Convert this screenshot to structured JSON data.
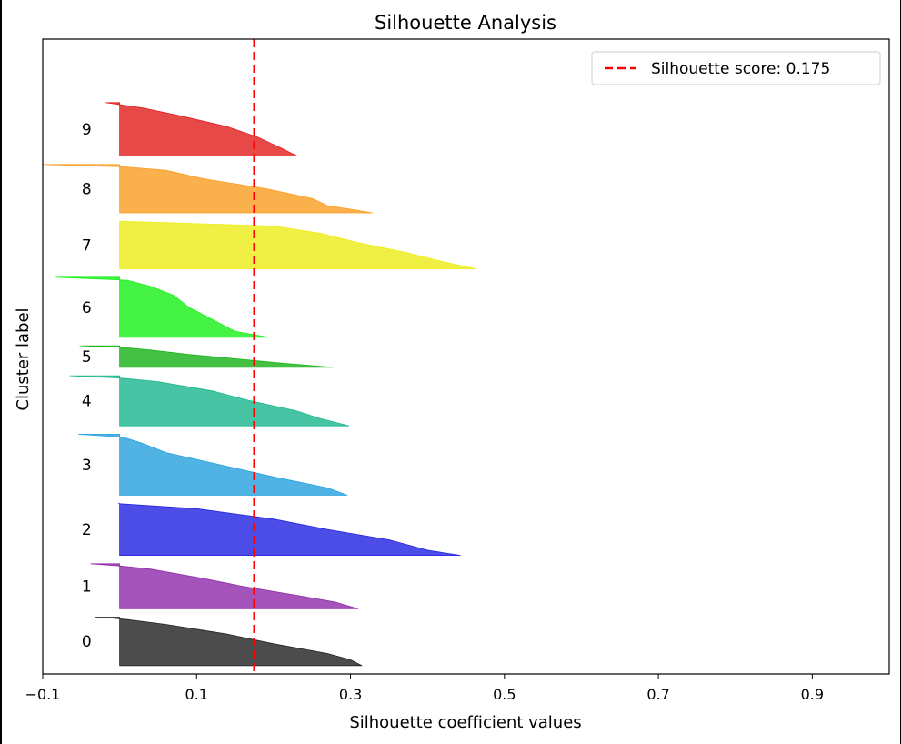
{
  "chart_data": {
    "type": "silhouette",
    "title": "Silhouette Analysis",
    "xlabel": "Silhouette coefficient values",
    "ylabel": "Cluster label",
    "xlim": [
      -0.1,
      1.0
    ],
    "ylim": [
      0,
      760
    ],
    "xticks": [
      -0.1,
      0.1,
      0.3,
      0.5,
      0.7,
      0.9
    ],
    "xtick_labels": [
      "−0.1",
      "0.1",
      "0.3",
      "0.5",
      "0.7",
      "0.9"
    ],
    "yticks": [],
    "grid": false,
    "silhouette_score": 0.175,
    "legend": {
      "entries": [
        "Silhouette score: 0.175"
      ],
      "location": "upper right"
    },
    "clusters": [
      {
        "label": "0",
        "size": 58,
        "min": -0.032,
        "max": 0.315,
        "color": "#1a1a1a",
        "profile": [
          [
            0,
            0.315
          ],
          [
            0.12,
            0.3
          ],
          [
            0.25,
            0.27
          ],
          [
            0.45,
            0.2
          ],
          [
            0.65,
            0.14
          ],
          [
            0.85,
            0.06
          ],
          [
            0.95,
            0.01
          ],
          [
            0.98,
            -0.01
          ],
          [
            1,
            -0.032
          ]
        ]
      },
      {
        "label": "1",
        "size": 54,
        "min": -0.038,
        "max": 0.31,
        "color": "#8a22a6",
        "profile": [
          [
            0,
            0.31
          ],
          [
            0.15,
            0.28
          ],
          [
            0.3,
            0.23
          ],
          [
            0.5,
            0.16
          ],
          [
            0.7,
            0.1
          ],
          [
            0.88,
            0.04
          ],
          [
            0.95,
            0.0
          ],
          [
            1,
            -0.038
          ]
        ]
      },
      {
        "label": "2",
        "size": 62,
        "min": -0.002,
        "max": 0.443,
        "color": "#1a1ae0",
        "profile": [
          [
            0,
            0.443
          ],
          [
            0.1,
            0.4
          ],
          [
            0.3,
            0.35
          ],
          [
            0.5,
            0.27
          ],
          [
            0.7,
            0.2
          ],
          [
            0.9,
            0.1
          ],
          [
            1,
            -0.002
          ]
        ]
      },
      {
        "label": "3",
        "size": 73,
        "min": -0.054,
        "max": 0.296,
        "color": "#1f9ddc",
        "profile": [
          [
            0,
            0.296
          ],
          [
            0.12,
            0.27
          ],
          [
            0.3,
            0.2
          ],
          [
            0.5,
            0.13
          ],
          [
            0.7,
            0.06
          ],
          [
            0.85,
            0.03
          ],
          [
            0.95,
            0.005
          ],
          [
            1,
            -0.054
          ]
        ]
      },
      {
        "label": "4",
        "size": 60,
        "min": -0.065,
        "max": 0.298,
        "color": "#12b38a",
        "profile": [
          [
            0,
            0.298
          ],
          [
            0.15,
            0.26
          ],
          [
            0.3,
            0.23
          ],
          [
            0.5,
            0.17
          ],
          [
            0.7,
            0.12
          ],
          [
            0.88,
            0.05
          ],
          [
            0.95,
            0.005
          ],
          [
            1,
            -0.065
          ]
        ]
      },
      {
        "label": "5",
        "size": 26,
        "min": -0.052,
        "max": 0.277,
        "color": "#10b010",
        "profile": [
          [
            0,
            0.277
          ],
          [
            0.2,
            0.21
          ],
          [
            0.4,
            0.15
          ],
          [
            0.6,
            0.09
          ],
          [
            0.8,
            0.04
          ],
          [
            0.92,
            0.005
          ],
          [
            1,
            -0.052
          ]
        ]
      },
      {
        "label": "6",
        "size": 72,
        "min": -0.083,
        "max": 0.194,
        "color": "#10f010",
        "profile": [
          [
            0,
            0.194
          ],
          [
            0.1,
            0.15
          ],
          [
            0.3,
            0.12
          ],
          [
            0.5,
            0.09
          ],
          [
            0.7,
            0.07
          ],
          [
            0.85,
            0.04
          ],
          [
            0.95,
            0.01
          ],
          [
            1,
            -0.083
          ]
        ]
      },
      {
        "label": "7",
        "size": 57,
        "min": 0.0,
        "max": 0.463,
        "color": "#ecec10",
        "profile": [
          [
            0,
            0.463
          ],
          [
            0.15,
            0.42
          ],
          [
            0.35,
            0.37
          ],
          [
            0.55,
            0.31
          ],
          [
            0.75,
            0.26
          ],
          [
            0.9,
            0.2
          ],
          [
            1,
            0.0
          ]
        ]
      },
      {
        "label": "8",
        "size": 58,
        "min": -0.1,
        "max": 0.329,
        "color": "#f99a1a",
        "profile": [
          [
            0,
            0.329
          ],
          [
            0.15,
            0.27
          ],
          [
            0.3,
            0.25
          ],
          [
            0.5,
            0.19
          ],
          [
            0.7,
            0.11
          ],
          [
            0.88,
            0.06
          ],
          [
            0.95,
            0.005
          ],
          [
            1,
            -0.1
          ]
        ]
      },
      {
        "label": "9",
        "size": 64,
        "min": -0.018,
        "max": 0.231,
        "color": "#e01414",
        "profile": [
          [
            0,
            0.231
          ],
          [
            0.15,
            0.21
          ],
          [
            0.35,
            0.18
          ],
          [
            0.55,
            0.14
          ],
          [
            0.75,
            0.08
          ],
          [
            0.9,
            0.03
          ],
          [
            0.95,
            0.005
          ],
          [
            1,
            -0.018
          ]
        ]
      }
    ]
  }
}
